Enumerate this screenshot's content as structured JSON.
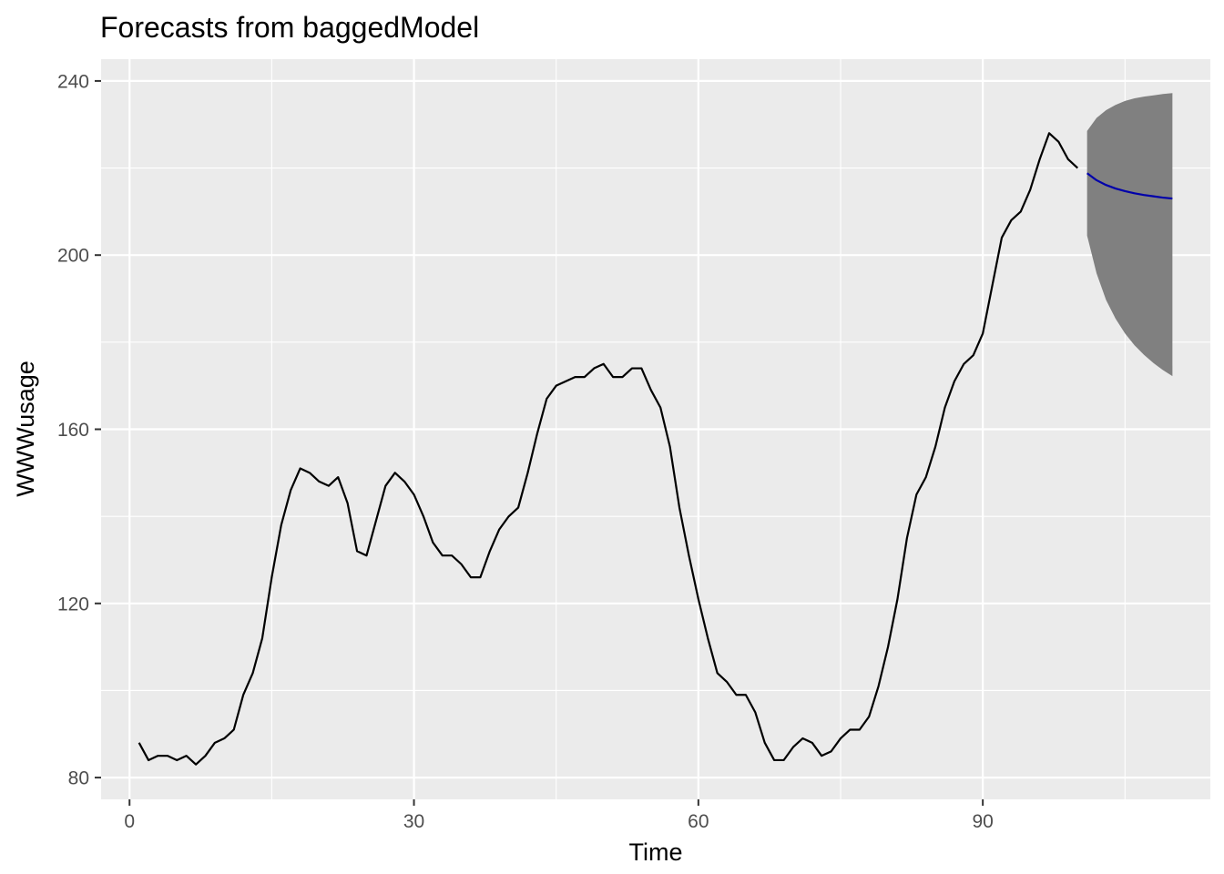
{
  "chart_data": {
    "type": "line",
    "title": "Forecasts from baggedModel",
    "xlabel": "Time",
    "ylabel": "WWWusage",
    "xlim": [
      -3,
      114
    ],
    "ylim": [
      75,
      245
    ],
    "x_ticks": [
      0,
      30,
      60,
      90
    ],
    "y_ticks": [
      80,
      120,
      160,
      200,
      240
    ],
    "x_tick_labels": [
      "0",
      "30",
      "60",
      "90"
    ],
    "y_tick_labels": [
      "80",
      "120",
      "160",
      "200",
      "240"
    ],
    "grid": true,
    "legend": "none",
    "series": [
      {
        "role": "observed",
        "color": "#000000",
        "x_start": 1,
        "values": [
          88,
          84,
          85,
          85,
          84,
          85,
          83,
          85,
          88,
          89,
          91,
          99,
          104,
          112,
          126,
          138,
          146,
          151,
          150,
          148,
          147,
          149,
          143,
          132,
          131,
          139,
          147,
          150,
          148,
          145,
          140,
          134,
          131,
          131,
          129,
          126,
          126,
          132,
          137,
          140,
          142,
          150,
          159,
          167,
          170,
          171,
          172,
          172,
          174,
          175,
          172,
          172,
          174,
          174,
          169,
          165,
          156,
          142,
          131,
          121,
          112,
          104,
          102,
          99,
          99,
          95,
          88,
          84,
          84,
          87,
          89,
          88,
          85,
          86,
          89,
          91,
          91,
          94,
          101,
          110,
          121,
          135,
          145,
          149,
          156,
          165,
          171,
          175,
          177,
          182,
          193,
          204,
          208,
          210,
          215,
          222,
          228,
          226,
          222,
          220
        ]
      },
      {
        "role": "forecast-mean",
        "color": "#0000aa",
        "x_start": 101,
        "values": [
          218.8,
          217.2,
          216.1,
          215.3,
          214.7,
          214.2,
          213.8,
          213.5,
          213.2,
          213.0
        ]
      }
    ],
    "interval": {
      "color": "#808080",
      "x_start": 101,
      "lower": [
        204.5,
        195.8,
        189.7,
        185.4,
        182.0,
        179.3,
        177.1,
        175.2,
        173.6,
        172.2
      ],
      "upper": [
        228.5,
        231.5,
        233.3,
        234.5,
        235.4,
        236.0,
        236.4,
        236.7,
        237.0,
        237.2
      ]
    }
  }
}
